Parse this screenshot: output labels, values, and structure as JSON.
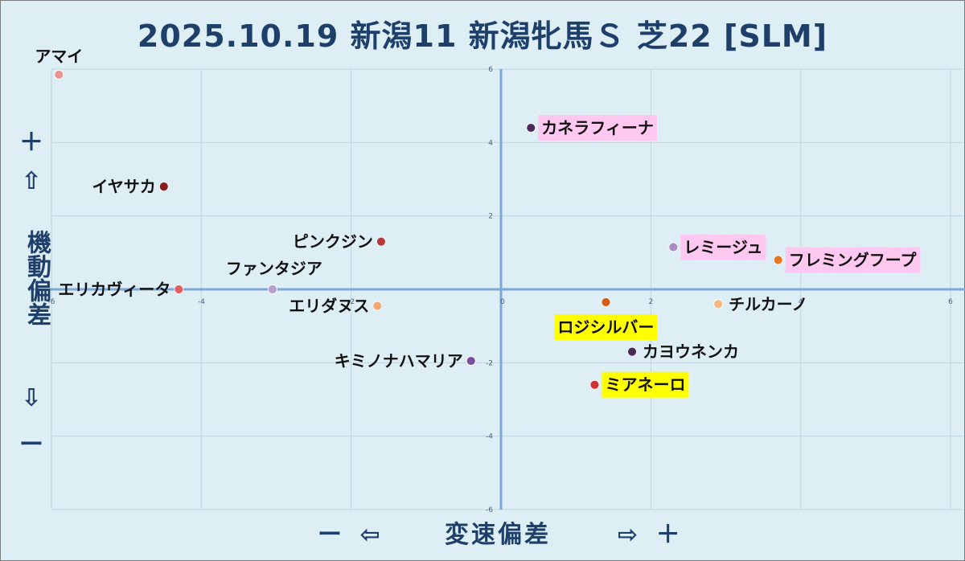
{
  "chart_data": {
    "type": "scatter",
    "title": "2025.10.19 新潟11 新潟牝馬Ｓ 芝22 [SLM]",
    "xlim": [
      -6,
      6
    ],
    "ylim": [
      -6,
      6
    ],
    "x_ticks": [
      -6,
      -4,
      -2,
      0,
      2,
      4,
      6
    ],
    "y_ticks": [
      -6,
      -4,
      -2,
      0,
      2,
      4,
      6
    ],
    "xlabel": {
      "minus": "ー ⇦",
      "name": "変速偏差",
      "plus": "⇨ ＋"
    },
    "ylabel": {
      "plus": "＋",
      "up_arrow": "⇧",
      "name": "機動偏差",
      "down_arrow": "⇩",
      "minus": "ー"
    },
    "grid": true,
    "points": [
      {
        "name": "アマイ",
        "x": -5.9,
        "y": 5.85,
        "color": "#e8948f",
        "highlight": null,
        "label_side": "above"
      },
      {
        "name": "イヤサカ",
        "x": -4.5,
        "y": 2.8,
        "color": "#8b1a1a",
        "highlight": null,
        "label_side": "left"
      },
      {
        "name": "ピンクジン",
        "x": -1.6,
        "y": 1.3,
        "color": "#b23a3a",
        "highlight": null,
        "label_side": "left"
      },
      {
        "name": "エリカヴィータ",
        "x": -4.3,
        "y": 0.0,
        "color": "#e06060",
        "highlight": null,
        "label_side": "left"
      },
      {
        "name": "ファンタジア",
        "x": -3.05,
        "y": 0.0,
        "color": "#b89ec8",
        "highlight": null,
        "label_side": "above-left"
      },
      {
        "name": "エリダヌス",
        "x": -1.65,
        "y": -0.45,
        "color": "#f2a870",
        "highlight": null,
        "label_side": "left"
      },
      {
        "name": "キミノナハマリア",
        "x": -0.4,
        "y": -1.95,
        "color": "#7a4fa0",
        "highlight": null,
        "label_side": "left"
      },
      {
        "name": "カネラフィーナ",
        "x": 0.4,
        "y": 4.4,
        "color": "#4a2a5a",
        "highlight": "#ffc8f0",
        "label_side": "right"
      },
      {
        "name": "レミージュ",
        "x": 2.3,
        "y": 1.15,
        "color": "#a88cc0",
        "highlight": "#ffc8f0",
        "label_side": "right"
      },
      {
        "name": "フレミングフープ",
        "x": 3.7,
        "y": 0.8,
        "color": "#e87820",
        "highlight": "#ffc8f0",
        "label_side": "right"
      },
      {
        "name": "チルカーノ",
        "x": 2.9,
        "y": -0.4,
        "color": "#f5b880",
        "highlight": null,
        "label_side": "right"
      },
      {
        "name": "ロジシルバー",
        "x": 1.4,
        "y": -0.35,
        "color": "#d65a10",
        "highlight": "#ffff00",
        "label_side": "below"
      },
      {
        "name": "カヨウネンカ",
        "x": 1.75,
        "y": -1.7,
        "color": "#4a2a5a",
        "highlight": null,
        "label_side": "right"
      },
      {
        "name": "ミアネーロ",
        "x": 1.25,
        "y": -2.6,
        "color": "#cc3333",
        "highlight": "#ffff00",
        "label_side": "right"
      }
    ]
  }
}
